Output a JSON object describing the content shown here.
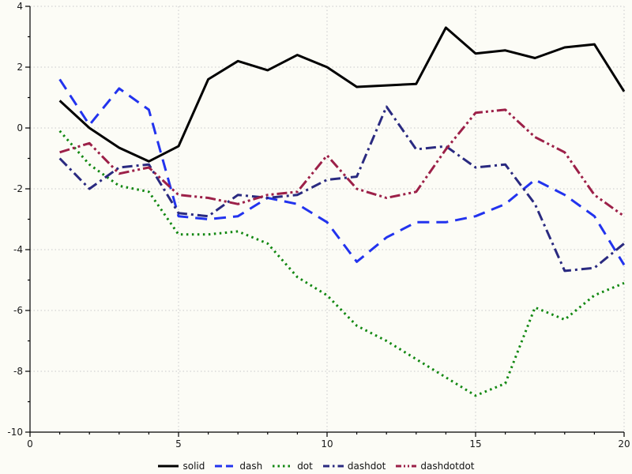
{
  "chart_data": {
    "type": "line",
    "title": "",
    "xlabel": "",
    "ylabel": "",
    "xlim": [
      0,
      20
    ],
    "ylim": [
      -10,
      4
    ],
    "xticks": [
      0,
      5,
      10,
      15,
      20
    ],
    "yticks": [
      4,
      2,
      0,
      -2,
      -4,
      -6,
      -8,
      -10
    ],
    "x_minor_tick_step": 1,
    "y_minor_tick_step": 1,
    "grid": true,
    "grid_style": "dotted",
    "legend_position": "bottom-center",
    "x": [
      1,
      2,
      3,
      4,
      5,
      6,
      7,
      8,
      9,
      10,
      11,
      12,
      13,
      14,
      15,
      16,
      17,
      18,
      19,
      20
    ],
    "series": [
      {
        "name": "solid",
        "linestyle": "solid",
        "color": "#000000",
        "values": [
          0.9,
          0.0,
          -0.65,
          -1.1,
          -0.6,
          1.6,
          2.2,
          1.9,
          2.4,
          2.0,
          1.35,
          1.4,
          1.45,
          3.3,
          2.45,
          2.55,
          2.3,
          2.65,
          2.75,
          1.2
        ]
      },
      {
        "name": "dash",
        "linestyle": "dash",
        "color": "#2233ee",
        "values": [
          1.6,
          0.1,
          1.3,
          0.6,
          -2.9,
          -3.0,
          -2.9,
          -2.3,
          -2.5,
          -3.1,
          -4.4,
          -3.6,
          -3.1,
          -3.1,
          -2.9,
          -2.5,
          -1.7,
          -2.2,
          -2.9,
          -4.5
        ]
      },
      {
        "name": "dot",
        "linestyle": "dot",
        "color": "#128812",
        "values": [
          -0.1,
          -1.2,
          -1.9,
          -2.1,
          -3.5,
          -3.5,
          -3.4,
          -3.8,
          -4.9,
          -5.5,
          -6.5,
          -7.0,
          -7.6,
          -8.2,
          -8.8,
          -8.4,
          -5.9,
          -6.3,
          -5.5,
          -5.1
        ]
      },
      {
        "name": "dashdot",
        "linestyle": "dashdot",
        "color": "#2a2a80",
        "values": [
          -1.0,
          -2.0,
          -1.3,
          -1.2,
          -2.8,
          -2.9,
          -2.2,
          -2.3,
          -2.2,
          -1.7,
          -1.6,
          0.7,
          -0.7,
          -0.6,
          -1.3,
          -1.2,
          -2.5,
          -4.7,
          -4.6,
          -3.8
        ]
      },
      {
        "name": "dashdotdot",
        "linestyle": "dashdotdot",
        "color": "#9c2048",
        "values": [
          -0.8,
          -0.5,
          -1.5,
          -1.3,
          -2.2,
          -2.3,
          -2.5,
          -2.2,
          -2.1,
          -0.9,
          -2.0,
          -2.3,
          -2.1,
          -0.7,
          0.5,
          0.6,
          -0.3,
          -0.8,
          -2.2,
          -2.9
        ]
      }
    ],
    "legend_labels": [
      "solid",
      "dash",
      "dot",
      "dashdot",
      "dashdotdot"
    ]
  },
  "colors": {
    "background": "#fcfcf6",
    "grid": "#c9c9c9",
    "axis": "#000000",
    "tick_label": "#1a1a1a"
  }
}
